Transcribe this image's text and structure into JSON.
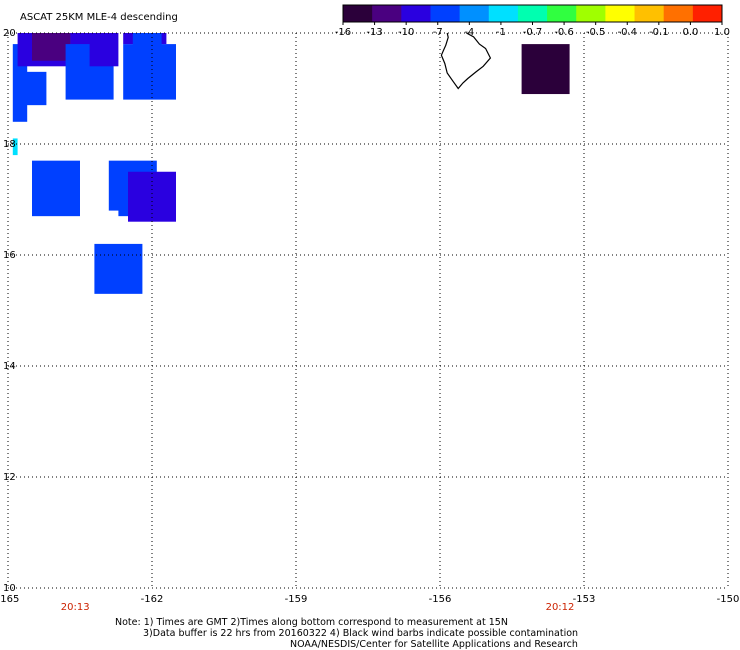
{
  "title": "ASCAT 25KM MLE-4 descending",
  "colorbar": {
    "labels": [
      "-16",
      "-13",
      "-10",
      "-7",
      "-4",
      "-1",
      "-0.7",
      "-0.6",
      "-0.5",
      "-0.4",
      "-0.1",
      "0.0",
      "1.0"
    ],
    "colors": [
      "#2b003a",
      "#4a0080",
      "#2a00e0",
      "#0040ff",
      "#0090ff",
      "#00e0ff",
      "#00ffb0",
      "#30ff40",
      "#a0ff00",
      "#ffff00",
      "#ffc000",
      "#ff7000",
      "#ff2000"
    ]
  },
  "axes": {
    "lon_labels": [
      "-165",
      "-162",
      "-159",
      "-156",
      "-153",
      "-150"
    ],
    "lat_labels": [
      "20",
      "18",
      "16",
      "14",
      "12",
      "10"
    ],
    "lon_range": [
      -165,
      -150
    ],
    "lat_range": [
      10,
      20
    ],
    "grid": "dotted"
  },
  "times": [
    {
      "label": "20:13",
      "lon": -163.6
    },
    {
      "label": "20:12",
      "lon": -153.5
    }
  ],
  "data_cells": [
    {
      "lon": [
        -164.9,
        -164.6
      ],
      "lat": [
        18.4,
        19.8
      ],
      "value": -7
    },
    {
      "lon": [
        -164.8,
        -164.2
      ],
      "lat": [
        18.7,
        19.3
      ],
      "value": -7
    },
    {
      "lon": [
        -164.8,
        -163.7
      ],
      "lat": [
        19.4,
        20.0
      ],
      "value": -10
    },
    {
      "lon": [
        -164.5,
        -163.7
      ],
      "lat": [
        19.5,
        20.0
      ],
      "value": -13
    },
    {
      "lon": [
        -163.7,
        -163.0
      ],
      "lat": [
        19.4,
        20.0
      ],
      "value": -10
    },
    {
      "lon": [
        -163.8,
        -162.8
      ],
      "lat": [
        18.8,
        19.8
      ],
      "value": -7
    },
    {
      "lon": [
        -163.3,
        -162.7
      ],
      "lat": [
        19.4,
        20.0
      ],
      "value": -10
    },
    {
      "lon": [
        -162.6,
        -161.5
      ],
      "lat": [
        18.8,
        19.8
      ],
      "value": -7
    },
    {
      "lon": [
        -162.6,
        -161.7
      ],
      "lat": [
        19.8,
        20.0
      ],
      "value": -10
    },
    {
      "lon": [
        -162.4,
        -161.8
      ],
      "lat": [
        19.7,
        20.0
      ],
      "value": -7
    },
    {
      "lon": [
        -164.9,
        -164.8
      ],
      "lat": [
        17.8,
        18.1
      ],
      "value": -1
    },
    {
      "lon": [
        -164.5,
        -163.5
      ],
      "lat": [
        16.7,
        17.7
      ],
      "value": -7
    },
    {
      "lon": [
        -162.9,
        -161.9
      ],
      "lat": [
        16.8,
        17.7
      ],
      "value": -7
    },
    {
      "lon": [
        -162.7,
        -161.9
      ],
      "lat": [
        16.7,
        17.4
      ],
      "value": -7
    },
    {
      "lon": [
        -162.5,
        -161.5
      ],
      "lat": [
        16.6,
        17.5
      ],
      "value": -10
    },
    {
      "lon": [
        -163.2,
        -162.2
      ],
      "lat": [
        15.3,
        16.2
      ],
      "value": -7
    },
    {
      "lon": [
        -154.3,
        -153.3
      ],
      "lat": [
        18.9,
        19.8
      ],
      "value": -16
    }
  ],
  "coastline": [
    [
      -155.85,
      20.0
    ],
    [
      -155.83,
      19.92
    ],
    [
      -155.88,
      19.78
    ],
    [
      -155.92,
      19.7
    ],
    [
      -155.97,
      19.6
    ],
    [
      -155.9,
      19.45
    ],
    [
      -155.85,
      19.28
    ],
    [
      -155.72,
      19.12
    ],
    [
      -155.62,
      19.0
    ],
    [
      -155.52,
      19.1
    ],
    [
      -155.42,
      19.18
    ],
    [
      -155.25,
      19.3
    ],
    [
      -155.1,
      19.4
    ],
    [
      -154.95,
      19.55
    ],
    [
      -155.05,
      19.72
    ],
    [
      -155.18,
      19.8
    ],
    [
      -155.3,
      19.93
    ],
    [
      -155.45,
      20.0
    ]
  ],
  "notes": [
    "Note: 1) Times are GMT 2)Times along bottom correspond to measurement at 15N",
    "3)Data buffer is 22 hrs from 20160322 4) Black wind barbs indicate possible contamination",
    "NOAA/NESDIS/Center for Satellite Applications and Research"
  ]
}
